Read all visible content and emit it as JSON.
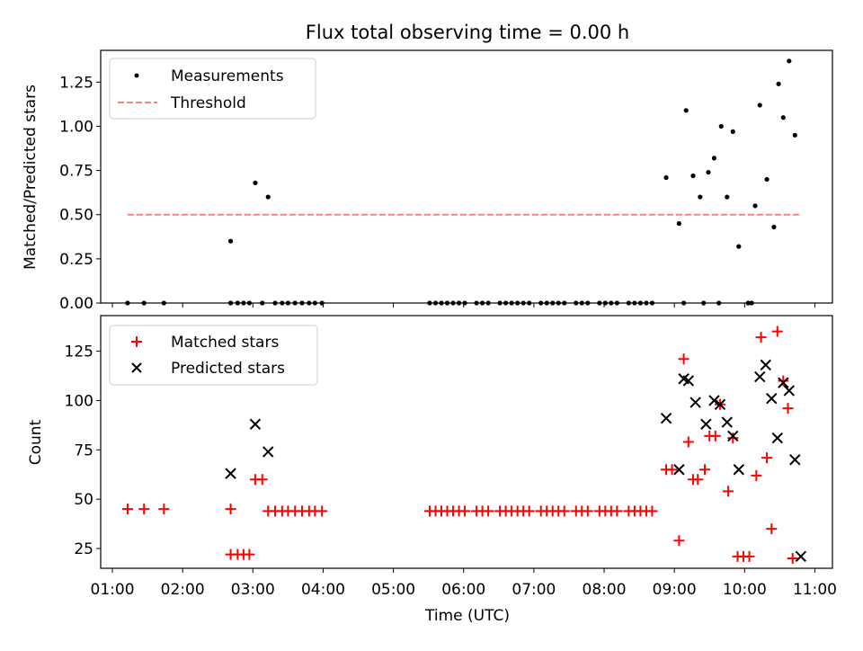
{
  "chart_data": [
    {
      "type": "scatter",
      "title": "Flux total observing time = 0.00 h",
      "ylabel": "Matched/Predicted stars",
      "xlabel": "",
      "xlim": [
        "00:50",
        "11:15"
      ],
      "ylim": [
        0,
        1.43
      ],
      "yticks": [
        0.0,
        0.25,
        0.5,
        0.75,
        1.0,
        1.25
      ],
      "ytick_labels": [
        "0.00",
        "0.25",
        "0.50",
        "0.75",
        "1.00",
        "1.25"
      ],
      "legend_position": "top-left",
      "grid": false,
      "series": [
        {
          "name": "Measurements",
          "marker": "dot",
          "color": "#000000",
          "points": [
            [
              "01:13",
              0
            ],
            [
              "01:27",
              0
            ],
            [
              "01:44",
              0
            ],
            [
              "02:41",
              0.35
            ],
            [
              "02:41",
              0
            ],
            [
              "02:47",
              0
            ],
            [
              "02:52",
              0
            ],
            [
              "02:57",
              0
            ],
            [
              "03:02",
              0.68
            ],
            [
              "03:08",
              0
            ],
            [
              "03:13",
              0.6
            ],
            [
              "03:19",
              0
            ],
            [
              "03:25",
              0
            ],
            [
              "03:30",
              0
            ],
            [
              "03:36",
              0
            ],
            [
              "03:42",
              0
            ],
            [
              "03:48",
              0
            ],
            [
              "03:53",
              0
            ],
            [
              "03:59",
              0
            ],
            [
              "05:31",
              0
            ],
            [
              "05:36",
              0
            ],
            [
              "05:41",
              0
            ],
            [
              "05:46",
              0
            ],
            [
              "05:51",
              0
            ],
            [
              "05:56",
              0
            ],
            [
              "06:01",
              0
            ],
            [
              "06:11",
              0
            ],
            [
              "06:16",
              0
            ],
            [
              "06:21",
              0
            ],
            [
              "06:31",
              0
            ],
            [
              "06:36",
              0
            ],
            [
              "06:41",
              0
            ],
            [
              "06:46",
              0
            ],
            [
              "06:51",
              0
            ],
            [
              "06:56",
              0
            ],
            [
              "07:06",
              0
            ],
            [
              "07:11",
              0
            ],
            [
              "07:16",
              0
            ],
            [
              "07:21",
              0
            ],
            [
              "07:26",
              0
            ],
            [
              "07:36",
              0
            ],
            [
              "07:41",
              0
            ],
            [
              "07:46",
              0
            ],
            [
              "07:56",
              0
            ],
            [
              "08:01",
              0
            ],
            [
              "08:06",
              0
            ],
            [
              "08:11",
              0
            ],
            [
              "08:21",
              0
            ],
            [
              "08:26",
              0
            ],
            [
              "08:31",
              0
            ],
            [
              "08:36",
              0
            ],
            [
              "08:41",
              0
            ],
            [
              "08:53",
              0.71
            ],
            [
              "09:04",
              0.45
            ],
            [
              "09:08",
              0
            ],
            [
              "09:10",
              1.09
            ],
            [
              "09:16",
              0.72
            ],
            [
              "09:22",
              0.6
            ],
            [
              "09:25",
              0
            ],
            [
              "09:29",
              0.74
            ],
            [
              "09:34",
              0.82
            ],
            [
              "09:38",
              0
            ],
            [
              "09:40",
              1.0
            ],
            [
              "09:45",
              0.6
            ],
            [
              "09:50",
              0.97
            ],
            [
              "09:55",
              0.32
            ],
            [
              "10:03",
              0
            ],
            [
              "10:06",
              0
            ],
            [
              "10:09",
              0.55
            ],
            [
              "10:13",
              1.12
            ],
            [
              "10:19",
              0.7
            ],
            [
              "10:25",
              0.43
            ],
            [
              "10:29",
              1.24
            ],
            [
              "10:33",
              1.05
            ],
            [
              "10:38",
              1.37
            ],
            [
              "10:43",
              0.95
            ]
          ]
        },
        {
          "name": "Threshold",
          "marker": "dashed-line",
          "color": "#ff7f7f",
          "x": [
            "01:13",
            "10:48"
          ],
          "y": [
            0.5,
            0.5
          ]
        }
      ]
    },
    {
      "type": "scatter",
      "title": "",
      "ylabel": "Count",
      "xlabel": "Time (UTC)",
      "xlim": [
        "00:50",
        "11:15"
      ],
      "ylim": [
        15,
        143
      ],
      "yticks": [
        25,
        50,
        75,
        100,
        125
      ],
      "ytick_labels": [
        "25",
        "50",
        "75",
        "100",
        "125"
      ],
      "xtick_labels": [
        "01:00",
        "02:00",
        "03:00",
        "04:00",
        "05:00",
        "06:00",
        "07:00",
        "08:00",
        "09:00",
        "10:00",
        "11:00"
      ],
      "legend_position": "top-left",
      "grid": false,
      "series": [
        {
          "name": "Matched stars",
          "marker": "plus",
          "color": "#ff0000",
          "points": [
            [
              "01:13",
              45
            ],
            [
              "01:27",
              45
            ],
            [
              "01:44",
              45
            ],
            [
              "02:41",
              45
            ],
            [
              "02:41",
              22
            ],
            [
              "02:47",
              22
            ],
            [
              "02:52",
              22
            ],
            [
              "02:57",
              22
            ],
            [
              "03:02",
              60
            ],
            [
              "03:08",
              60
            ],
            [
              "03:13",
              44
            ],
            [
              "03:19",
              44
            ],
            [
              "03:25",
              44
            ],
            [
              "03:30",
              44
            ],
            [
              "03:36",
              44
            ],
            [
              "03:42",
              44
            ],
            [
              "03:48",
              44
            ],
            [
              "03:53",
              44
            ],
            [
              "03:59",
              44
            ],
            [
              "05:31",
              44
            ],
            [
              "05:36",
              44
            ],
            [
              "05:41",
              44
            ],
            [
              "05:46",
              44
            ],
            [
              "05:51",
              44
            ],
            [
              "05:56",
              44
            ],
            [
              "06:01",
              44
            ],
            [
              "06:11",
              44
            ],
            [
              "06:16",
              44
            ],
            [
              "06:21",
              44
            ],
            [
              "06:31",
              44
            ],
            [
              "06:36",
              44
            ],
            [
              "06:41",
              44
            ],
            [
              "06:46",
              44
            ],
            [
              "06:51",
              44
            ],
            [
              "06:56",
              44
            ],
            [
              "07:06",
              44
            ],
            [
              "07:11",
              44
            ],
            [
              "07:16",
              44
            ],
            [
              "07:21",
              44
            ],
            [
              "07:26",
              44
            ],
            [
              "07:36",
              44
            ],
            [
              "07:41",
              44
            ],
            [
              "07:46",
              44
            ],
            [
              "07:56",
              44
            ],
            [
              "08:01",
              44
            ],
            [
              "08:06",
              44
            ],
            [
              "08:11",
              44
            ],
            [
              "08:21",
              44
            ],
            [
              "08:26",
              44
            ],
            [
              "08:31",
              44
            ],
            [
              "08:36",
              44
            ],
            [
              "08:41",
              44
            ],
            [
              "08:53",
              65
            ],
            [
              "08:58",
              65
            ],
            [
              "09:04",
              29
            ],
            [
              "09:08",
              121
            ],
            [
              "09:12",
              79
            ],
            [
              "09:16",
              60
            ],
            [
              "09:20",
              60
            ],
            [
              "09:26",
              65
            ],
            [
              "09:30",
              82
            ],
            [
              "09:35",
              82
            ],
            [
              "09:39",
              98
            ],
            [
              "09:46",
              54
            ],
            [
              "09:50",
              81
            ],
            [
              "09:54",
              21
            ],
            [
              "09:59",
              21
            ],
            [
              "10:04",
              21
            ],
            [
              "10:10",
              62
            ],
            [
              "10:14",
              132
            ],
            [
              "10:19",
              71
            ],
            [
              "10:23",
              35
            ],
            [
              "10:28",
              135
            ],
            [
              "10:33",
              110
            ],
            [
              "10:37",
              96
            ],
            [
              "10:41",
              20
            ]
          ]
        },
        {
          "name": "Predicted stars",
          "marker": "x",
          "color": "#000000",
          "points": [
            [
              "02:41",
              63
            ],
            [
              "03:02",
              88
            ],
            [
              "03:13",
              74
            ],
            [
              "08:53",
              91
            ],
            [
              "09:04",
              65
            ],
            [
              "09:08",
              111
            ],
            [
              "09:12",
              110
            ],
            [
              "09:18",
              99
            ],
            [
              "09:27",
              88
            ],
            [
              "09:34",
              100
            ],
            [
              "09:39",
              98
            ],
            [
              "09:45",
              89
            ],
            [
              "09:50",
              82
            ],
            [
              "09:55",
              65
            ],
            [
              "10:13",
              112
            ],
            [
              "10:18",
              118
            ],
            [
              "10:23",
              101
            ],
            [
              "10:28",
              81
            ],
            [
              "10:33",
              109
            ],
            [
              "10:38",
              105
            ],
            [
              "10:43",
              70
            ],
            [
              "10:48",
              21
            ]
          ]
        }
      ]
    }
  ]
}
